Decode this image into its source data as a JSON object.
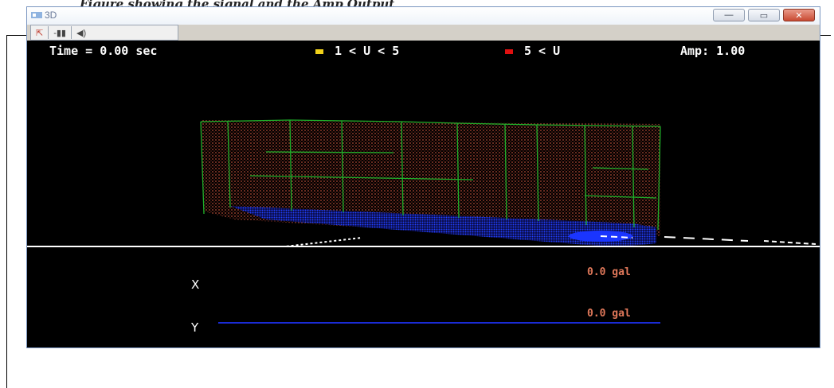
{
  "caption": {
    "text": "Figure showing the signal and the Amp Output"
  },
  "window": {
    "title": "3D",
    "buttons": {
      "minimize": "—",
      "maximize": "▭",
      "close": "✕"
    }
  },
  "toolbar": {
    "items": [
      {
        "name": "open-icon",
        "label": "⇱"
      },
      {
        "name": "step-icon",
        "label": "-▮▮"
      },
      {
        "name": "speaker-icon",
        "label": "◀)"
      }
    ]
  },
  "hud": {
    "time": "Time = 0.00 sec",
    "legend1": {
      "label": "1 < U < 5",
      "color": "#f2d21a"
    },
    "legend2": {
      "label": "5 < U",
      "color": "#e01010"
    },
    "amp": "Amp: 1.00"
  },
  "channels": [
    {
      "axis": "X",
      "value": "0.0 gal"
    },
    {
      "axis": "Y",
      "value": "0.0 gal"
    }
  ],
  "colors": {
    "wireframe": "#1fb02a",
    "cloud": "#8b3a2a",
    "base": "#1a35ff"
  }
}
